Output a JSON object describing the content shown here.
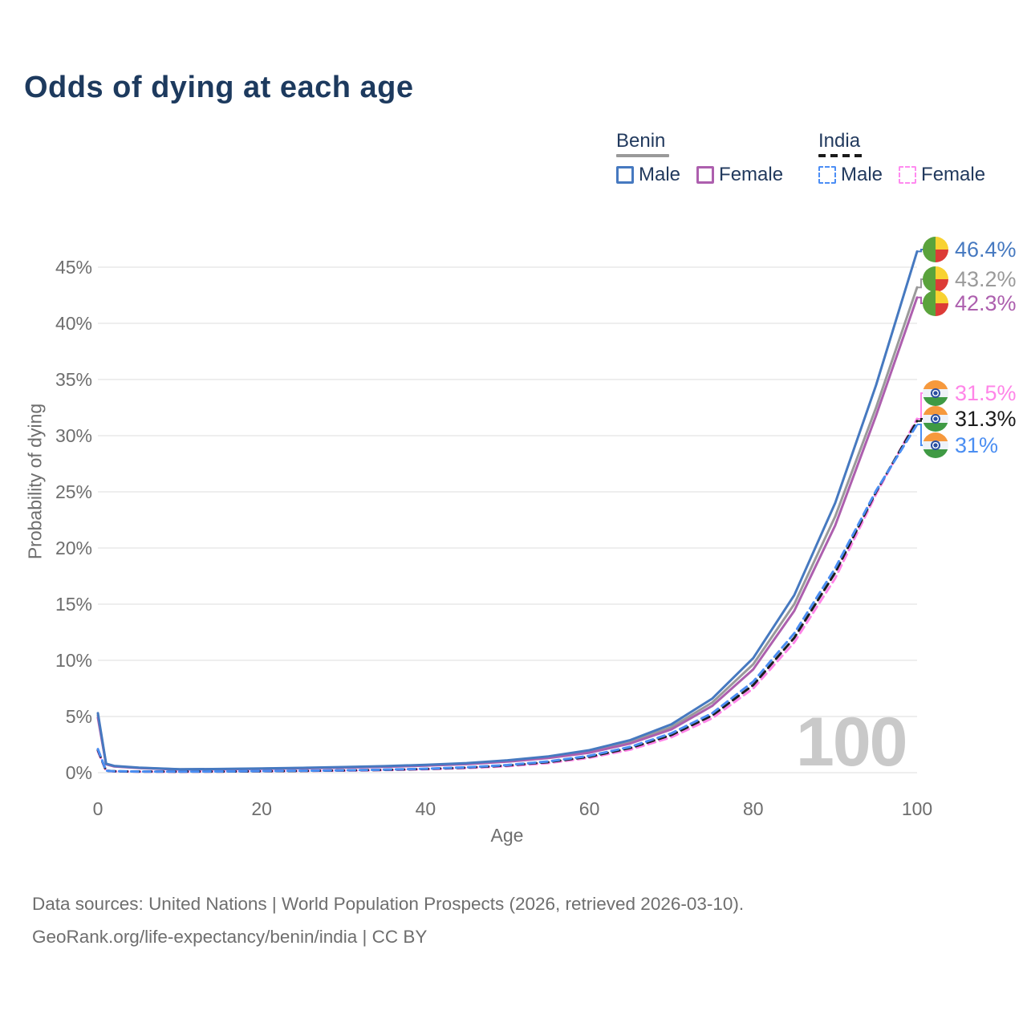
{
  "title": "Odds of dying at each age",
  "watermark_age": "100",
  "legend": {
    "groups": [
      {
        "label": "Benin",
        "line_style": "solid",
        "line_color": "#9a9a9a",
        "items": [
          {
            "label": "Male",
            "color": "#4679c0",
            "style": "solid"
          },
          {
            "label": "Female",
            "color": "#ad5fae",
            "style": "solid"
          }
        ]
      },
      {
        "label": "India",
        "line_style": "dashed",
        "line_color": "#1b1b1b",
        "items": [
          {
            "label": "Male",
            "color": "#4c8ef5",
            "style": "dashed"
          },
          {
            "label": "Female",
            "color": "#ff8bf0",
            "style": "dashed"
          }
        ]
      }
    ]
  },
  "axes": {
    "y_label": "Probability of dying",
    "x_label": "Age",
    "y_ticks": [
      "0%",
      "5%",
      "10%",
      "15%",
      "20%",
      "25%",
      "30%",
      "35%",
      "40%",
      "45%"
    ],
    "x_ticks": [
      "0",
      "20",
      "40",
      "60",
      "80",
      "100"
    ]
  },
  "end_labels": [
    {
      "text": "46.4%",
      "color": "#4679c0",
      "flag": "benin"
    },
    {
      "text": "43.2%",
      "color": "#9a9a9a",
      "flag": "benin"
    },
    {
      "text": "42.3%",
      "color": "#ad5fae",
      "flag": "benin"
    },
    {
      "text": "31.5%",
      "color": "#ff85e8",
      "flag": "india"
    },
    {
      "text": "31.3%",
      "color": "#1c1c1c",
      "flag": "india"
    },
    {
      "text": "31%",
      "color": "#4b8ef2",
      "flag": "india"
    }
  ],
  "chart_data": {
    "type": "line",
    "title": "Odds of dying at each age",
    "xlabel": "Age",
    "ylabel": "Probability of dying",
    "xlim": [
      0,
      100
    ],
    "ylim": [
      0,
      47
    ],
    "grid": true,
    "legend_position": "top-right",
    "units": "percent probability of dying at each age",
    "x": [
      0,
      1,
      2,
      5,
      10,
      15,
      20,
      25,
      30,
      35,
      40,
      45,
      50,
      55,
      60,
      65,
      70,
      75,
      80,
      85,
      90,
      95,
      100
    ],
    "series": [
      {
        "name": "Benin",
        "country": "benin",
        "sex": "both",
        "style": "solid",
        "color": "#9a9a9a",
        "label_slot": 1,
        "end_value": "43.2%",
        "values": [
          5.1,
          0.77,
          0.57,
          0.43,
          0.29,
          0.31,
          0.36,
          0.41,
          0.47,
          0.55,
          0.66,
          0.8,
          1.03,
          1.36,
          1.88,
          2.73,
          4.05,
          6.25,
          9.65,
          15.0,
          22.8,
          32.5,
          43.2
        ]
      },
      {
        "name": "Benin Female",
        "country": "benin",
        "sex": "female",
        "style": "solid",
        "color": "#ad5fae",
        "label_slot": 2,
        "end_value": "42.3%",
        "values": [
          4.9,
          0.74,
          0.55,
          0.41,
          0.28,
          0.3,
          0.34,
          0.39,
          0.45,
          0.52,
          0.62,
          0.76,
          0.98,
          1.3,
          1.78,
          2.6,
          3.85,
          5.95,
          9.2,
          14.4,
          22.0,
          31.8,
          42.3
        ]
      },
      {
        "name": "Benin Male",
        "country": "benin",
        "sex": "male",
        "style": "solid",
        "color": "#4679c0",
        "label_slot": 0,
        "end_value": "46.4%",
        "values": [
          5.3,
          0.8,
          0.6,
          0.45,
          0.3,
          0.33,
          0.38,
          0.43,
          0.5,
          0.58,
          0.7,
          0.85,
          1.1,
          1.45,
          2.0,
          2.9,
          4.3,
          6.6,
          10.2,
          15.8,
          24.0,
          34.5,
          46.4
        ]
      },
      {
        "name": "India Female",
        "country": "india",
        "sex": "female",
        "style": "dashed",
        "color": "#ff85e8",
        "label_slot": 3,
        "end_value": "31.5%",
        "values": [
          1.9,
          0.16,
          0.11,
          0.09,
          0.08,
          0.1,
          0.12,
          0.15,
          0.18,
          0.23,
          0.3,
          0.41,
          0.58,
          0.86,
          1.32,
          2.05,
          3.15,
          4.85,
          7.5,
          11.6,
          17.3,
          24.8,
          31.5
        ]
      },
      {
        "name": "India",
        "country": "india",
        "sex": "both",
        "style": "dashed",
        "color": "#1c1c1c",
        "label_slot": 4,
        "end_value": "31.3%",
        "values": [
          2.0,
          0.17,
          0.12,
          0.1,
          0.09,
          0.1,
          0.13,
          0.16,
          0.2,
          0.25,
          0.33,
          0.45,
          0.64,
          0.94,
          1.42,
          2.2,
          3.35,
          5.1,
          7.8,
          12.0,
          17.8,
          25.0,
          31.3
        ]
      },
      {
        "name": "India Male",
        "country": "india",
        "sex": "male",
        "style": "dashed",
        "color": "#4b8ef2",
        "label_slot": 5,
        "end_value": "31%",
        "values": [
          2.1,
          0.18,
          0.13,
          0.1,
          0.09,
          0.11,
          0.14,
          0.17,
          0.21,
          0.27,
          0.35,
          0.48,
          0.68,
          1.0,
          1.5,
          2.3,
          3.5,
          5.3,
          8.1,
          12.4,
          18.2,
          25.1,
          31.0
        ]
      }
    ]
  },
  "footer": {
    "line1": "Data sources: United Nations | World Population Prospects (2026, retrieved 2026-03-10).",
    "line2": "GeoRank.org/life-expectancy/benin/india | CC BY"
  }
}
